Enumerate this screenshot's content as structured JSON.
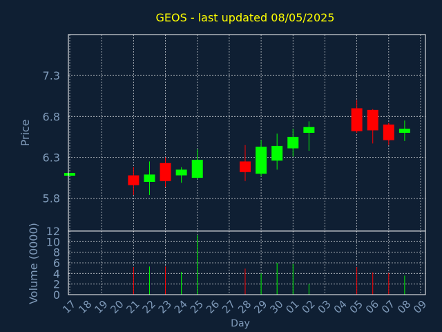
{
  "colors": {
    "background": "#0f1f33",
    "title": "#ffff00",
    "axis_text": "#7f9ab9",
    "frame": "#ffffff",
    "grid": "#ffffff",
    "up": "#00ff00",
    "down": "#ff0000"
  },
  "chart_data": {
    "type": "candlestick",
    "title": "GEOS - last updated 08/05/2025",
    "xlabel": "Day",
    "price_panel": {
      "ylabel": "Price",
      "ylim": [
        5.4,
        7.8
      ],
      "yticks": [
        "5.8",
        "6.3",
        "6.8",
        "7.3"
      ],
      "ytick_values": [
        5.8,
        6.3,
        6.8,
        7.3
      ],
      "grid": true
    },
    "volume_panel": {
      "ylabel": "Volume (0000)",
      "ylim": [
        0,
        12
      ],
      "yticks": [
        "0",
        "2",
        "4",
        "6",
        "8",
        "10",
        "12"
      ],
      "ytick_values": [
        0,
        2,
        4,
        6,
        8,
        10,
        12
      ],
      "grid": true
    },
    "x_ticks": [
      "17",
      "18",
      "19",
      "20",
      "21",
      "22",
      "23",
      "24",
      "25",
      "26",
      "27",
      "28",
      "29",
      "30",
      "01",
      "02",
      "03",
      "04",
      "05",
      "06",
      "07",
      "08",
      "09"
    ],
    "candles": [
      {
        "day": "17",
        "open": 6.1,
        "high": 6.11,
        "low": 6.09,
        "close": 6.11,
        "volume": 0
      },
      {
        "day": "21",
        "open": 6.08,
        "high": 6.18,
        "low": 5.84,
        "close": 5.96,
        "volume": 5.2
      },
      {
        "day": "22",
        "open": 6.0,
        "high": 6.25,
        "low": 5.84,
        "close": 6.09,
        "volume": 5.3
      },
      {
        "day": "23",
        "open": 6.23,
        "high": 6.3,
        "low": 5.94,
        "close": 6.01,
        "volume": 5.3
      },
      {
        "day": "24",
        "open": 6.08,
        "high": 6.18,
        "low": 5.99,
        "close": 6.15,
        "volume": 4.3
      },
      {
        "day": "25",
        "open": 6.05,
        "high": 6.4,
        "low": 6.04,
        "close": 6.27,
        "volume": 11.2
      },
      {
        "day": "28",
        "open": 6.25,
        "high": 6.45,
        "low": 6.01,
        "close": 6.12,
        "volume": 4.9
      },
      {
        "day": "29",
        "open": 6.1,
        "high": 6.51,
        "low": 6.07,
        "close": 6.43,
        "volume": 4.0
      },
      {
        "day": "30",
        "open": 6.26,
        "high": 6.59,
        "low": 6.15,
        "close": 6.44,
        "volume": 6.0
      },
      {
        "day": "01",
        "open": 6.41,
        "high": 6.65,
        "low": 6.31,
        "close": 6.55,
        "volume": 5.8
      },
      {
        "day": "02",
        "open": 6.6,
        "high": 6.74,
        "low": 6.38,
        "close": 6.67,
        "volume": 2.0
      },
      {
        "day": "05",
        "open": 6.9,
        "high": 7.0,
        "low": 6.6,
        "close": 6.62,
        "volume": 5.2
      },
      {
        "day": "06",
        "open": 6.88,
        "high": 6.89,
        "low": 6.47,
        "close": 6.63,
        "volume": 4.2
      },
      {
        "day": "07",
        "open": 6.7,
        "high": 6.72,
        "low": 6.45,
        "close": 6.51,
        "volume": 4.1
      },
      {
        "day": "08",
        "open": 6.6,
        "high": 6.75,
        "low": 6.5,
        "close": 6.65,
        "volume": 3.6
      }
    ]
  }
}
